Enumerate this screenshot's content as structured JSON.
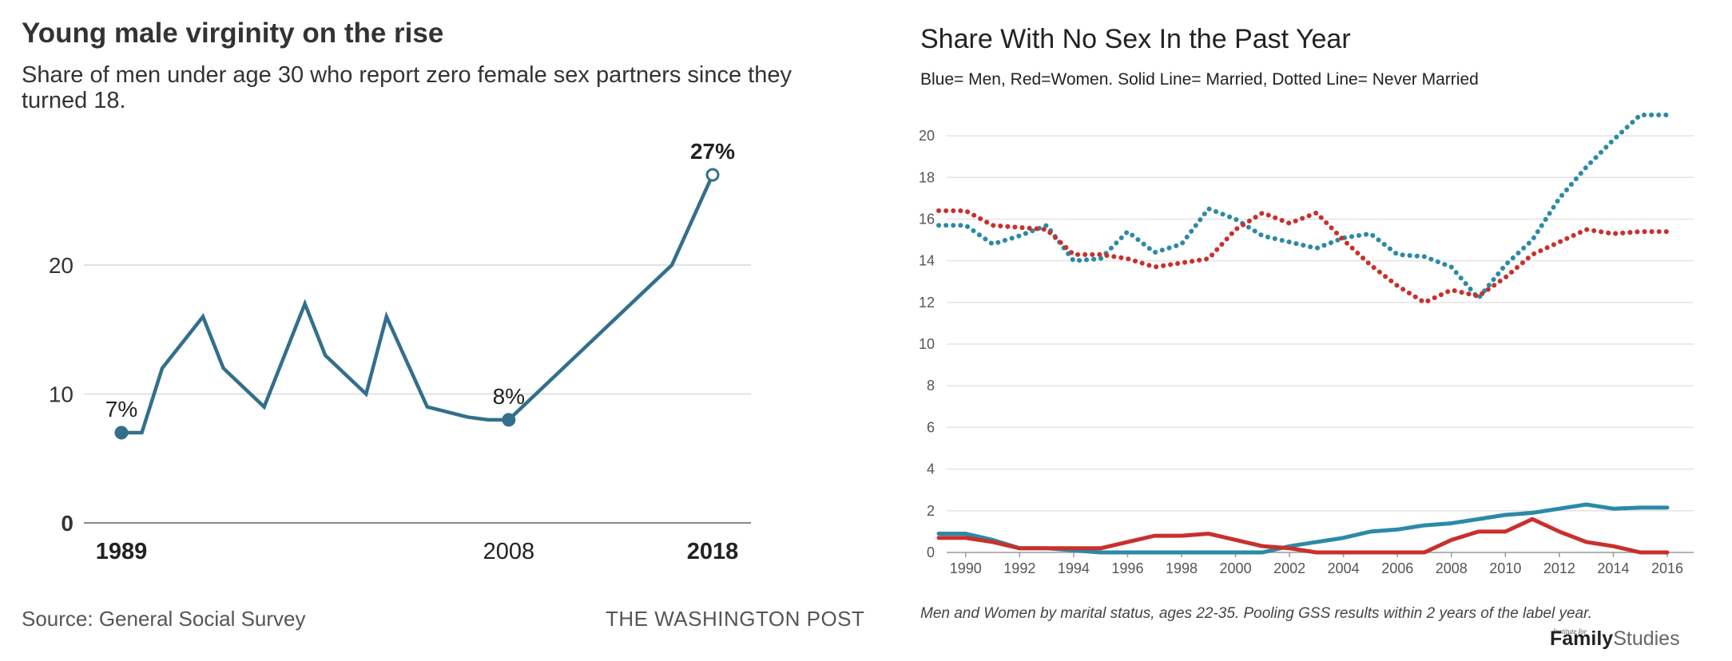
{
  "left": {
    "title": "Young male virginity on the rise",
    "subtitle": "Share of men under age 30 who report zero female sex partners since they turned 18.",
    "source": "Source: General Social Survey",
    "credit": "THE WASHINGTON POST"
  },
  "right": {
    "title": "Share With No Sex In the Past Year",
    "subtitle": "Blue= Men, Red=Women. Solid Line= Married, Dotted Line= Never Married",
    "note": "Men and Women by marital status, ages 22-35. Pooling GSS results within 2 years of the label year.",
    "logo_kicker": "Institute for",
    "logo_family": "Family",
    "logo_studies": "Studies"
  },
  "colors": {
    "wp_line": "#336f8c",
    "blue": "#2b8aa6",
    "red": "#c9302c",
    "grid": "#d9d9d9",
    "axis": "#999999"
  },
  "chart_data": [
    {
      "type": "line",
      "title": "Young male virginity on the rise",
      "subtitle": "Share of men under age 30 who report zero female sex partners since they turned 18.",
      "xlabel": "",
      "ylabel": "",
      "xlim": [
        1989,
        2018
      ],
      "ylim": [
        0,
        27
      ],
      "yticks": [
        0,
        10,
        20
      ],
      "xtick_labels": [
        "1989",
        "2008",
        "2018"
      ],
      "xtick_values": [
        1989,
        2008,
        2018
      ],
      "grid": true,
      "series": [
        {
          "x": [
            1989,
            1990,
            1991,
            1993,
            1994,
            1996,
            1998,
            1999,
            2001,
            2002,
            2004,
            2006,
            2007,
            2008,
            2016,
            2018
          ],
          "y": [
            7,
            7,
            12,
            16,
            12,
            9,
            17,
            13,
            10,
            16,
            9,
            8.2,
            8,
            8,
            20,
            27
          ]
        }
      ],
      "annotations": [
        {
          "x": 1989,
          "y": 7,
          "label": "7%"
        },
        {
          "x": 2008,
          "y": 8,
          "label": "8%"
        },
        {
          "x": 2018,
          "y": 27,
          "label": "27%"
        }
      ]
    },
    {
      "type": "line",
      "title": "Share With No Sex In the Past Year",
      "subtitle": "Blue= Men, Red=Women. Solid Line= Married, Dotted Line= Never Married",
      "xlabel": "",
      "ylabel": "",
      "xlim": [
        1989,
        2016
      ],
      "ylim": [
        0,
        21
      ],
      "yticks": [
        0,
        2,
        4,
        6,
        8,
        10,
        12,
        14,
        16,
        18,
        20
      ],
      "xticks": [
        1990,
        1992,
        1994,
        1996,
        1998,
        2000,
        2002,
        2004,
        2006,
        2008,
        2010,
        2012,
        2014,
        2016
      ],
      "grid": true,
      "x": [
        1989,
        1990,
        1991,
        1992,
        1993,
        1994,
        1995,
        1996,
        1997,
        1998,
        1999,
        2000,
        2001,
        2002,
        2003,
        2004,
        2005,
        2006,
        2007,
        2008,
        2009,
        2010,
        2011,
        2012,
        2013,
        2014,
        2015,
        2016
      ],
      "series": [
        {
          "color": "blue",
          "style": "dotted",
          "y": [
            15.7,
            15.7,
            14.8,
            15.2,
            15.7,
            14.0,
            14.1,
            15.4,
            14.4,
            14.8,
            16.5,
            16.0,
            15.2,
            14.9,
            14.6,
            15.1,
            15.3,
            14.3,
            14.2,
            13.7,
            12.2,
            13.8,
            15.0,
            17.0,
            18.5,
            19.8,
            21.0,
            21.0
          ]
        },
        {
          "color": "red",
          "style": "dotted",
          "y": [
            16.4,
            16.4,
            15.7,
            15.6,
            15.5,
            14.3,
            14.3,
            14.1,
            13.7,
            13.9,
            14.1,
            15.5,
            16.3,
            15.8,
            16.3,
            15.0,
            13.8,
            12.8,
            12.0,
            12.6,
            12.3,
            13.2,
            14.3,
            14.9,
            15.5,
            15.3,
            15.4,
            15.4
          ]
        },
        {
          "color": "blue",
          "style": "solid",
          "y": [
            0.9,
            0.9,
            0.6,
            0.2,
            0.2,
            0.1,
            0.0,
            0.0,
            0.0,
            0.0,
            0.0,
            0.0,
            0.0,
            0.3,
            0.5,
            0.7,
            1.0,
            1.1,
            1.3,
            1.4,
            1.6,
            1.8,
            1.9,
            2.1,
            2.3,
            2.1,
            2.15,
            2.15
          ]
        },
        {
          "color": "red",
          "style": "solid",
          "y": [
            0.7,
            0.7,
            0.5,
            0.2,
            0.2,
            0.2,
            0.2,
            0.5,
            0.8,
            0.8,
            0.9,
            0.6,
            0.3,
            0.2,
            0.0,
            0.0,
            0.0,
            0.0,
            0.0,
            0.6,
            1.0,
            1.0,
            1.6,
            1.0,
            0.5,
            0.3,
            0.0,
            0.0
          ]
        }
      ]
    }
  ]
}
